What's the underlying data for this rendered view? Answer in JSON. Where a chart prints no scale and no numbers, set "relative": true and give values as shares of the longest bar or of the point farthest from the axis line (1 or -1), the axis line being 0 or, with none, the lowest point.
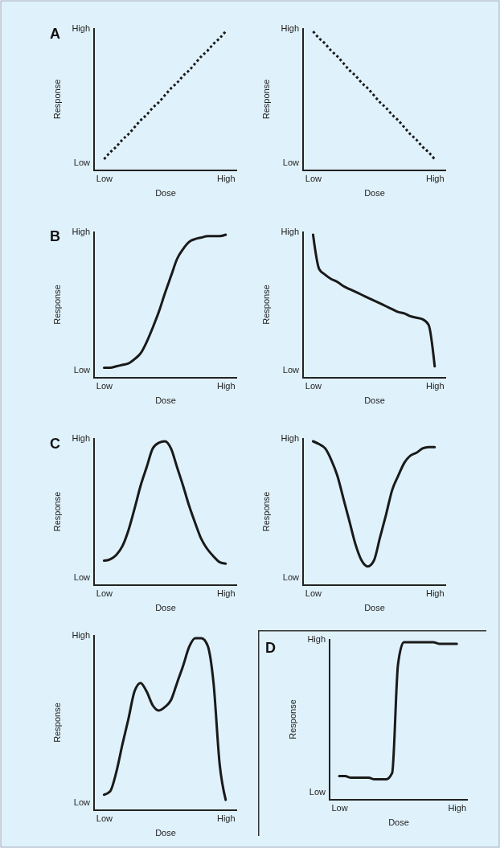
{
  "chart_data": [
    {
      "type": "line",
      "title": "A",
      "xlabel": "Dose",
      "ylabel": "Response",
      "relative": true,
      "annotations": [
        "Low",
        "High"
      ],
      "categories": [
        "Low",
        null,
        null,
        null,
        null,
        null,
        null,
        null,
        null,
        null,
        null,
        null,
        null,
        null,
        null,
        null,
        null,
        null,
        null,
        null,
        "High"
      ],
      "line_style": "dotted",
      "series": [
        {
          "color": "#1a1a1a",
          "values": [
            0.08,
            0.13,
            0.17,
            0.22,
            0.26,
            0.31,
            0.36,
            0.4,
            0.45,
            0.49,
            0.54,
            0.59,
            0.63,
            0.68,
            0.72,
            0.77,
            0.82,
            0.86,
            0.91,
            0.95,
            1
          ]
        }
      ]
    },
    {
      "type": "line",
      "xlabel": "Dose",
      "ylabel": "Response",
      "relative": true,
      "annotations": [
        "Low",
        "High"
      ],
      "categories": [
        "Low",
        null,
        null,
        null,
        null,
        null,
        null,
        null,
        null,
        null,
        null,
        null,
        null,
        null,
        null,
        null,
        null,
        null,
        null,
        null,
        "High"
      ],
      "line_style": "dotted",
      "series": [
        {
          "color": "#1a1a1a",
          "values": [
            1,
            0.95,
            0.91,
            0.86,
            0.82,
            0.77,
            0.72,
            0.68,
            0.63,
            0.59,
            0.54,
            0.49,
            0.45,
            0.4,
            0.36,
            0.31,
            0.26,
            0.22,
            0.17,
            0.13,
            0.08
          ]
        }
      ]
    },
    {
      "type": "line",
      "title": "B",
      "xlabel": "Dose",
      "ylabel": "Response",
      "relative": true,
      "annotations": [
        "Low",
        "High"
      ],
      "categories": [
        "Low",
        null,
        null,
        null,
        null,
        null,
        null,
        null,
        null,
        null,
        null,
        null,
        null,
        null,
        null,
        null,
        null,
        null,
        null,
        null,
        "High"
      ],
      "line_style": "solid",
      "series": [
        {
          "color": "#1a1a1a",
          "values": [
            0.07,
            0.07,
            0.08,
            0.09,
            0.1,
            0.13,
            0.17,
            0.25,
            0.35,
            0.46,
            0.59,
            0.71,
            0.83,
            0.9,
            0.95,
            0.97,
            0.98,
            0.99,
            0.99,
            0.99,
            1
          ]
        }
      ]
    },
    {
      "type": "line",
      "xlabel": "Dose",
      "ylabel": "Response",
      "relative": true,
      "annotations": [
        "Low",
        "High"
      ],
      "categories": [
        "Low",
        null,
        null,
        null,
        null,
        null,
        null,
        null,
        null,
        null,
        null,
        null,
        null,
        null,
        null,
        null,
        null,
        null,
        null,
        null,
        "High"
      ],
      "line_style": "solid",
      "series": [
        {
          "color": "#1a1a1a",
          "values": [
            1,
            0.76,
            0.72,
            0.69,
            0.67,
            0.64,
            0.62,
            0.6,
            0.58,
            0.56,
            0.54,
            0.52,
            0.5,
            0.48,
            0.46,
            0.45,
            0.43,
            0.42,
            0.41,
            0.37,
            0.08
          ]
        }
      ]
    },
    {
      "type": "line",
      "title": "C",
      "xlabel": "Dose",
      "ylabel": "Response",
      "relative": true,
      "annotations": [
        "Low",
        "High"
      ],
      "categories": [
        "Low",
        null,
        null,
        null,
        null,
        null,
        null,
        null,
        null,
        null,
        null,
        null,
        null,
        null,
        null,
        null,
        null,
        null,
        null,
        null,
        "High"
      ],
      "line_style": "solid",
      "series": [
        {
          "color": "#1a1a1a",
          "values": [
            0.17,
            0.18,
            0.21,
            0.27,
            0.38,
            0.53,
            0.69,
            0.82,
            0.95,
            0.99,
            1,
            0.95,
            0.82,
            0.69,
            0.55,
            0.43,
            0.32,
            0.25,
            0.2,
            0.16,
            0.15
          ]
        }
      ]
    },
    {
      "type": "line",
      "xlabel": "Dose",
      "ylabel": "Response",
      "relative": true,
      "annotations": [
        "Low",
        "High"
      ],
      "categories": [
        "Low",
        null,
        null,
        null,
        null,
        null,
        null,
        null,
        null,
        null,
        null,
        null,
        null,
        null,
        null,
        null,
        null,
        null,
        null,
        null,
        "High"
      ],
      "line_style": "solid",
      "series": [
        {
          "color": "#1a1a1a",
          "values": [
            1,
            0.98,
            0.95,
            0.87,
            0.76,
            0.6,
            0.44,
            0.28,
            0.17,
            0.13,
            0.17,
            0.33,
            0.49,
            0.66,
            0.76,
            0.85,
            0.9,
            0.92,
            0.95,
            0.96,
            0.96
          ]
        }
      ]
    },
    {
      "type": "line",
      "xlabel": "Dose",
      "ylabel": "Response",
      "relative": true,
      "annotations": [
        "Low",
        "High"
      ],
      "categories": [
        "Low",
        null,
        null,
        null,
        null,
        null,
        null,
        null,
        null,
        null,
        null,
        null,
        null,
        null,
        null,
        null,
        null,
        null,
        null,
        null,
        "High"
      ],
      "line_style": "solid",
      "series": [
        {
          "color": "#1a1a1a",
          "values": [
            0.09,
            0.11,
            0.22,
            0.38,
            0.53,
            0.69,
            0.74,
            0.69,
            0.61,
            0.58,
            0.6,
            0.64,
            0.74,
            0.84,
            0.95,
            1,
            1,
            0.96,
            0.74,
            0.27,
            0.06
          ]
        }
      ]
    },
    {
      "type": "line",
      "title": "D",
      "xlabel": "Dose",
      "ylabel": "Response",
      "relative": true,
      "annotations": [
        "Low",
        "High"
      ],
      "categories": [
        "Low",
        null,
        null,
        null,
        null,
        null,
        null,
        null,
        null,
        null,
        null,
        null,
        null,
        null,
        null,
        null,
        null,
        null,
        null,
        null,
        "High"
      ],
      "line_style": "solid",
      "series": [
        {
          "color": "#1a1a1a",
          "values": [
            0.15,
            0.15,
            0.14,
            0.14,
            0.14,
            0.14,
            0.13,
            0.13,
            0.13,
            0.17,
            0.86,
            1,
            1,
            1,
            1,
            1,
            1,
            0.99,
            0.99,
            0.99,
            0.99
          ]
        }
      ]
    }
  ]
}
